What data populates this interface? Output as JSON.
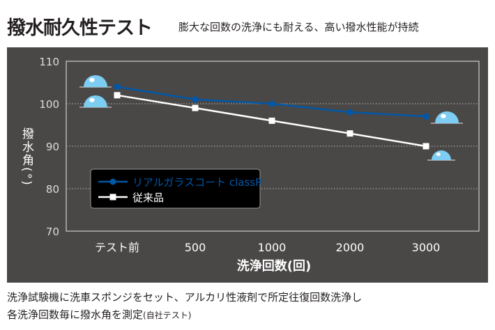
{
  "header": {
    "title": "撥水耐久性テスト",
    "subtitle": "膨大な回数の洗浄にも耐える、高い撥水性能が持続"
  },
  "chart_data": {
    "type": "line",
    "categories": [
      "テスト前",
      "500",
      "1000",
      "2000",
      "3000"
    ],
    "series": [
      {
        "name": "リアルガラスコート classR",
        "values": [
          104,
          101,
          100,
          98,
          97
        ],
        "color": "#0057a8",
        "marker": "circle"
      },
      {
        "name": "従来品",
        "values": [
          102,
          99,
          96,
          93,
          90
        ],
        "color": "#ffffff",
        "marker": "square"
      }
    ],
    "xlabel": "洗浄回数(回)",
    "ylabel": "撥水角(°)",
    "ylim": [
      70,
      110
    ],
    "yticks": [
      "70",
      "80",
      "90",
      "100",
      "110"
    ],
    "grid": "horizontal-dotted",
    "legend": "center-left",
    "background": "#4a4847",
    "droplet_color": "#7dcdf2"
  },
  "caption": {
    "line1": "洗浄試験機に洗車スポンジをセット、アルカリ性液剤で所定往復回数洗浄し",
    "line2": "各洗浄回数毎に撥水角を測定",
    "note": "(自社テスト)"
  }
}
